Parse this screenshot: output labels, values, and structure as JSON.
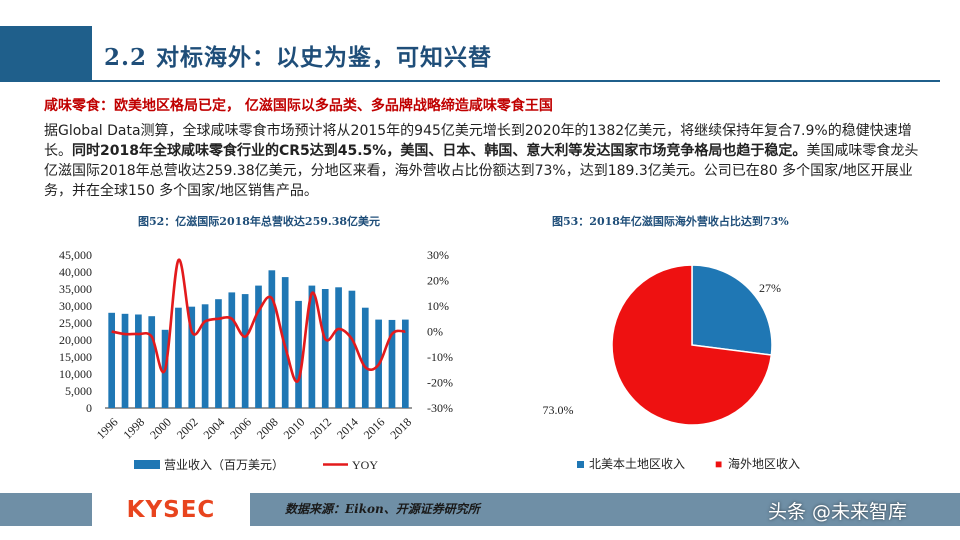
{
  "header": {
    "title": "2.2 对标海外：以史为鉴，可知兴替"
  },
  "headline": "咸味零食：欧美地区格局已定， 亿滋国际以多品类、多品牌战略缔造咸味零食王国",
  "paragraph": {
    "p1": "据Global Data测算，全球咸味零食市场预计将从2015年的945亿美元增长到2020年的1382亿美元，将继续保持年复合7.9%的稳健快速增长。",
    "p2": "同时2018年全球咸味零食行业的CR5达到45.5%，美国、日本、韩国、意大利等发达国家市场竞争格局也趋于稳定。",
    "p3": "美国咸味零食龙头亿滋国际2018年总营收达259.38亿美元，分地区来看，海外营收占比份额达到73%，达到189.3亿美元。公司已在80 多个国家/地区开展业务，并在全球150 多个国家/地区销售产品。"
  },
  "chart52": {
    "title": "图52：亿滋国际2018年总营收达259.38亿美元"
  },
  "chart53": {
    "title": "图53：2018年亿滋国际海外营收占比达到73%"
  },
  "footer": {
    "logo": "KYSEC",
    "source": "数据来源：Eikon、开源证券研究所",
    "watermark": "头条 @未来智库"
  },
  "colors": {
    "bar": "#1f77b4",
    "line": "#e31a1c",
    "pie_overseas": "#ee1111",
    "pie_domestic": "#1f77b4",
    "brand": "#e8441e",
    "title": "#1f4e79"
  },
  "chart_data": [
    {
      "type": "bar",
      "categories": [
        "1996",
        "1997",
        "1998",
        "1999",
        "2000",
        "2001",
        "2002",
        "2003",
        "2004",
        "2005",
        "2006",
        "2007",
        "2008",
        "2009",
        "2010",
        "2011",
        "2012",
        "2013",
        "2014",
        "2015",
        "2016",
        "2017",
        "2018"
      ],
      "x_tick_labels": [
        "1996",
        "1998",
        "2000",
        "2002",
        "2004",
        "2006",
        "2008",
        "2010",
        "2012",
        "2014",
        "2016",
        "2018"
      ],
      "series": [
        {
          "name": "营业收入（百万美元）",
          "type": "bar",
          "axis": "left",
          "values": [
            28000,
            27700,
            27500,
            27000,
            23000,
            29500,
            29800,
            30500,
            32000,
            34000,
            33500,
            36000,
            40500,
            38500,
            31500,
            36000,
            35000,
            35500,
            34500,
            29500,
            26000,
            25900,
            26000
          ]
        },
        {
          "name": "YOY",
          "type": "line",
          "axis": "right",
          "values": [
            0,
            -1,
            -1,
            -2,
            -15,
            28,
            0,
            4,
            5,
            5,
            -2,
            8,
            13,
            -6,
            -19,
            15,
            -3,
            1,
            -3,
            -14,
            -13,
            -1,
            0
          ]
        }
      ],
      "y_left": {
        "min": 0,
        "max": 45000,
        "ticks": [
          "0",
          "5,000",
          "10,000",
          "15,000",
          "20,000",
          "25,000",
          "30,000",
          "35,000",
          "40,000",
          "45,000"
        ]
      },
      "y_right": {
        "min": -30,
        "max": 30,
        "ticks": [
          "-30%",
          "-20%",
          "-10%",
          "0%",
          "10%",
          "20%",
          "30%"
        ]
      },
      "legend": "bottom"
    },
    {
      "type": "pie",
      "slices": [
        {
          "name": "北美本土地区收入",
          "value": 27,
          "label": "27%"
        },
        {
          "name": "海外地区收入",
          "value": 73,
          "label": "73.0%"
        }
      ],
      "legend": "bottom"
    }
  ]
}
